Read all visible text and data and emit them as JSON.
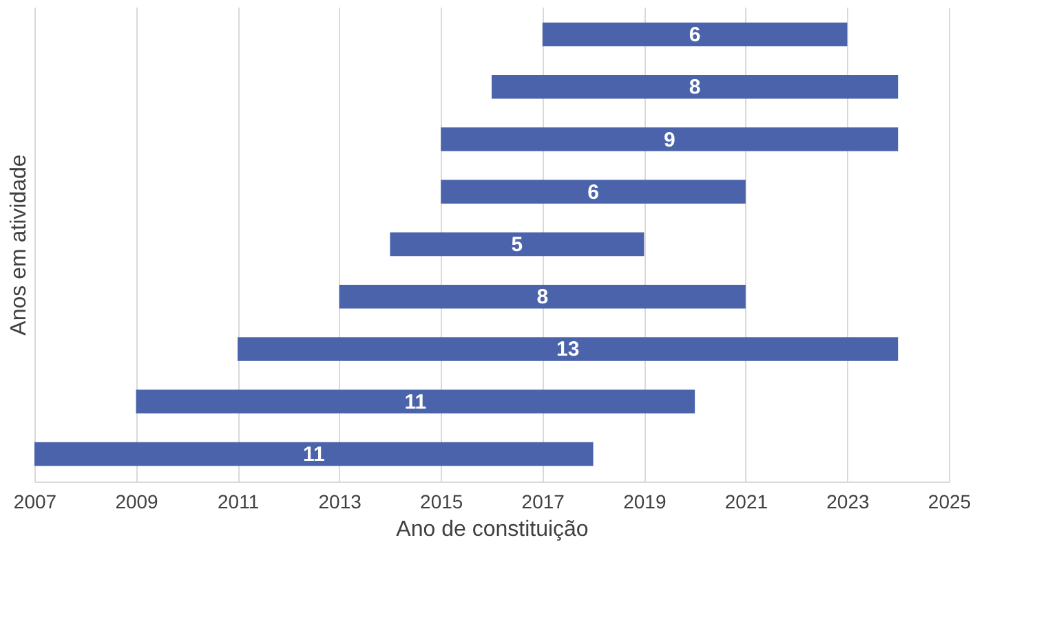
{
  "chart_data": {
    "type": "bar",
    "orientation": "horizontal",
    "xlabel": "Ano de constituição",
    "ylabel": "Anos em atividade",
    "categories": [
      null,
      null,
      null,
      null,
      null,
      null,
      null,
      null,
      null
    ],
    "base": [
      2017,
      2016,
      2015,
      2015,
      2014,
      2013,
      2011,
      2009,
      2007
    ],
    "values": [
      6,
      8,
      9,
      6,
      5,
      8,
      13,
      11,
      11
    ],
    "color": "#4a63ab",
    "xlim": [
      2007,
      2025
    ],
    "xticks": [
      2007,
      2009,
      2011,
      2013,
      2015,
      2017,
      2019,
      2021,
      2023,
      2025
    ],
    "grid": "x",
    "data_labels": true,
    "tick_labels": "x"
  }
}
